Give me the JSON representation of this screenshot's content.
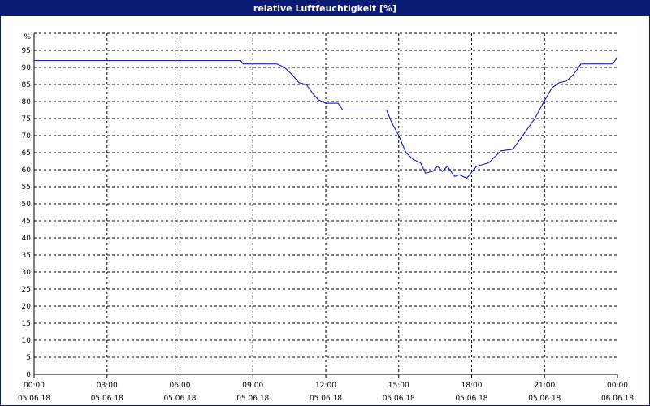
{
  "window": {
    "title": "relative Luftfeuchtigkeit [%]"
  },
  "chart_data": {
    "type": "line",
    "title": "relative Luftfeuchtigkeit [%]",
    "ylabel": "%",
    "xlabel": "",
    "ylim": [
      0,
      100
    ],
    "xlim": [
      0,
      24
    ],
    "y_ticks": [
      0,
      5,
      10,
      15,
      20,
      25,
      30,
      35,
      40,
      45,
      50,
      55,
      60,
      65,
      70,
      75,
      80,
      85,
      90,
      95
    ],
    "x_ticks": [
      {
        "x": 0,
        "time": "00:00",
        "date": "05.06.18"
      },
      {
        "x": 3,
        "time": "03:00",
        "date": "05.06.18"
      },
      {
        "x": 6,
        "time": "06:00",
        "date": "05.06.18"
      },
      {
        "x": 9,
        "time": "09:00",
        "date": "05.06.18"
      },
      {
        "x": 12,
        "time": "12:00",
        "date": "05.06.18"
      },
      {
        "x": 15,
        "time": "15:00",
        "date": "05.06.18"
      },
      {
        "x": 18,
        "time": "18:00",
        "date": "05.06.18"
      },
      {
        "x": 21,
        "time": "21:00",
        "date": "05.06.18"
      },
      {
        "x": 24,
        "time": "00:00",
        "date": "06.06.18"
      }
    ],
    "grid": true,
    "line_color": "#0000cc",
    "series": [
      {
        "name": "",
        "x": [
          0,
          3,
          6,
          8.5,
          8.6,
          9.5,
          10,
          10.3,
          10.6,
          10.9,
          11.2,
          11.5,
          11.7,
          12,
          12.5,
          12.7,
          13.5,
          14.5,
          14.7,
          15,
          15.3,
          15.6,
          15.9,
          16.1,
          16.4,
          16.6,
          16.8,
          17,
          17.3,
          17.5,
          17.8,
          18.2,
          18.7,
          19.2,
          19.7,
          20.2,
          20.6,
          20.9,
          21.3,
          21.6,
          21.9,
          22.2,
          22.5,
          23,
          23.5,
          23.8,
          24
        ],
        "y": [
          92,
          92,
          92,
          92,
          91,
          91,
          91,
          90,
          88,
          85.5,
          85,
          82,
          80.5,
          79.5,
          79.5,
          77.5,
          77.5,
          77.5,
          74,
          70,
          65,
          63,
          62,
          59,
          59.5,
          61,
          59.5,
          61,
          58,
          58.5,
          57.5,
          61,
          62,
          65.5,
          66,
          71,
          75,
          79,
          84,
          85.5,
          86,
          88,
          91,
          91,
          91,
          91,
          93
        ]
      }
    ]
  }
}
